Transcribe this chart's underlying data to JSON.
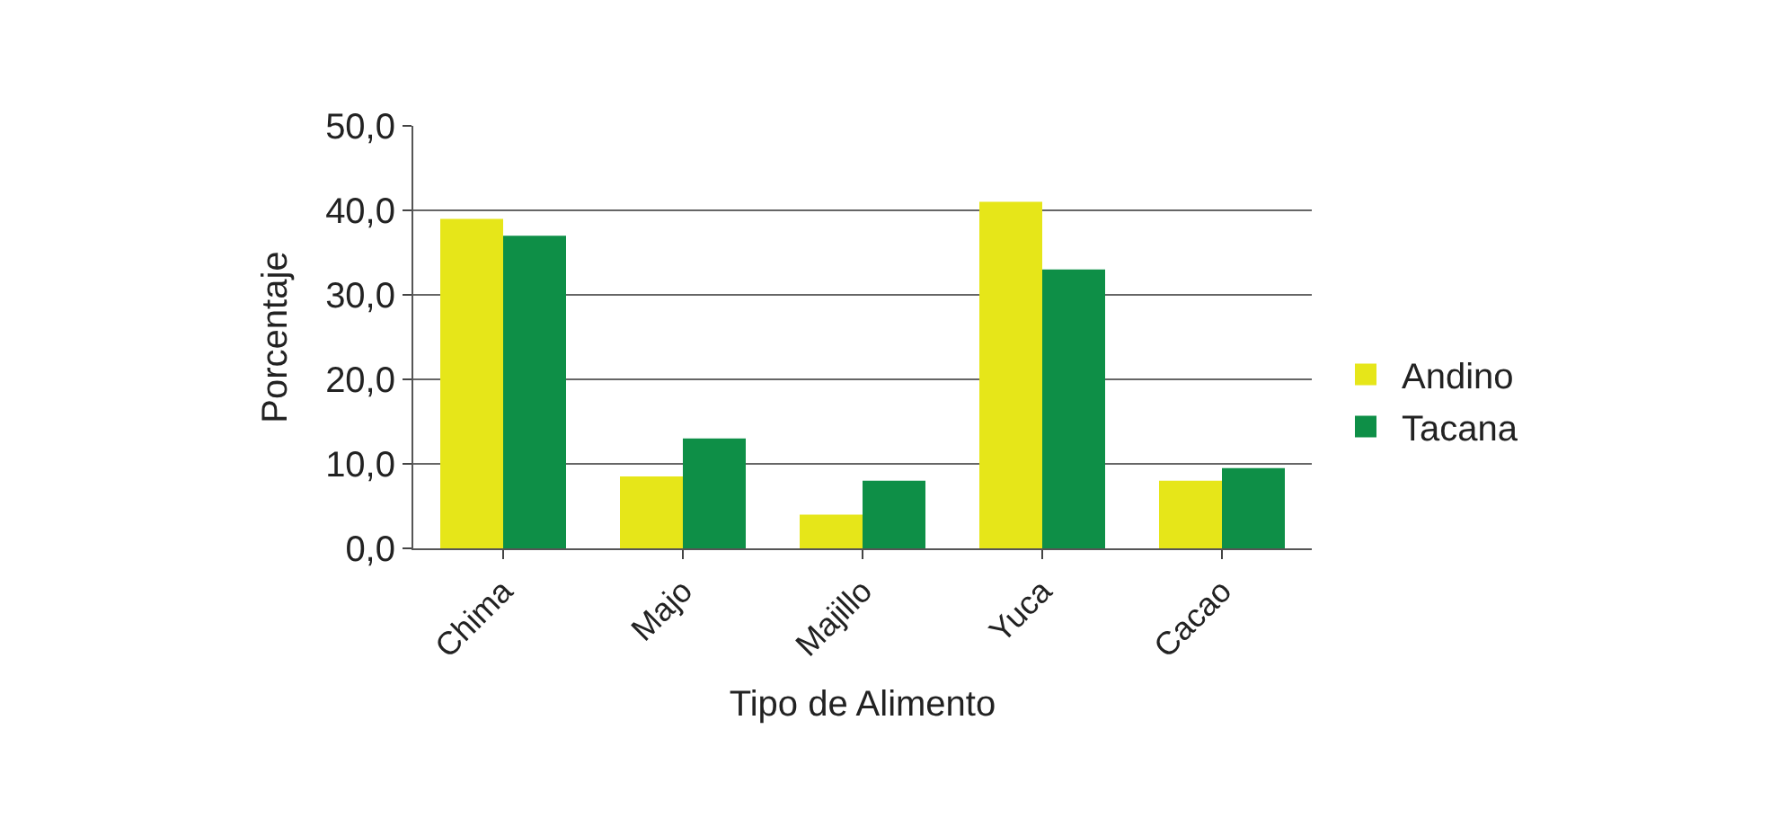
{
  "chart_data": {
    "type": "bar",
    "xlabel": "Tipo de Alimento",
    "ylabel": "Porcentaje",
    "categories": [
      "Chima",
      "Majo",
      "Majillo",
      "Yuca",
      "Cacao"
    ],
    "series": [
      {
        "name": "Andino",
        "color": "#e6e619",
        "values": [
          39.0,
          8.5,
          4.0,
          41.0,
          8.0
        ]
      },
      {
        "name": "Tacana",
        "color": "#0e8f47",
        "values": [
          37.0,
          13.0,
          8.0,
          33.0,
          9.5
        ]
      }
    ],
    "ylim": [
      0,
      50
    ],
    "yticks": [
      {
        "value": 0,
        "label": "0,0"
      },
      {
        "value": 10,
        "label": "10,0"
      },
      {
        "value": 20,
        "label": "20,0"
      },
      {
        "value": 30,
        "label": "30,0"
      },
      {
        "value": 40,
        "label": "40,0"
      },
      {
        "value": 50,
        "label": "50,0"
      }
    ],
    "grid": "y",
    "legend": "right"
  }
}
